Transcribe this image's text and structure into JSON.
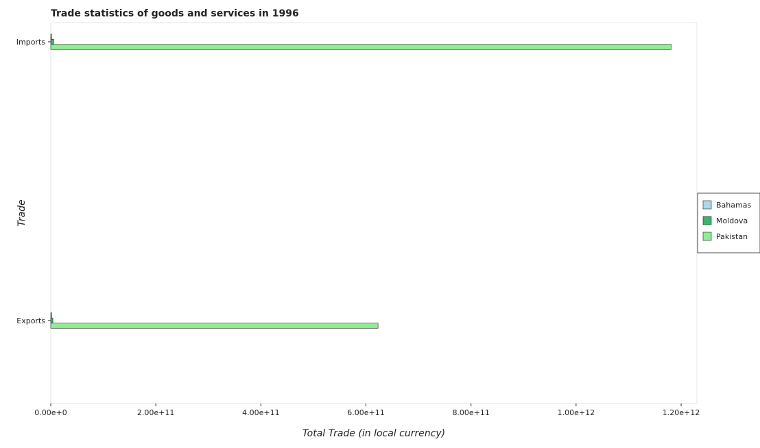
{
  "chart_data": {
    "type": "bar",
    "orientation": "horizontal",
    "title": "Trade statistics of goods and services in 1996",
    "xlabel": "Total Trade (in local currency)",
    "ylabel": "Trade",
    "categories": [
      "Exports",
      "Imports"
    ],
    "series": [
      {
        "name": "Bahamas",
        "color": "#add8e6",
        "values": [
          2200000000.0,
          1800000000.0
        ]
      },
      {
        "name": "Moldova",
        "color": "#3cb371",
        "values": [
          4000000000.0,
          5600000000.0
        ]
      },
      {
        "name": "Pakistan",
        "color": "#90ee90",
        "values": [
          623000000000.0,
          1181000000000.0
        ]
      }
    ],
    "xlim": [
      0,
      1230000000000.0
    ],
    "xticks": [
      0,
      200000000000.0,
      400000000000.0,
      600000000000.0,
      800000000000.0,
      1000000000000.0,
      1200000000000.0
    ],
    "xtick_labels": [
      "0.00e+0",
      "2.00e+11",
      "4.00e+11",
      "6.00e+11",
      "8.00e+11",
      "1.00e+12",
      "1.20e+12"
    ],
    "grid": false,
    "legend_position": "right"
  }
}
